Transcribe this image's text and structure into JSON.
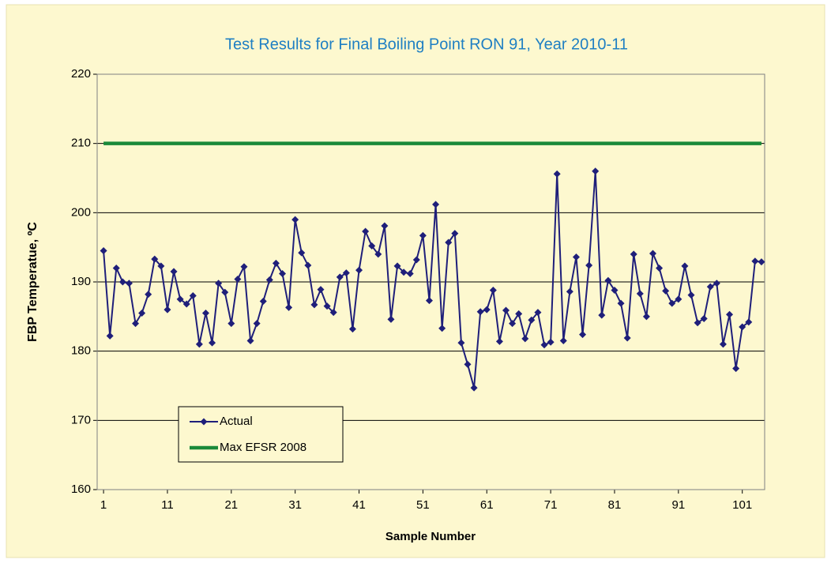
{
  "chart_data": {
    "type": "line",
    "title": "Test Results for Final Boiling Point RON 91, Year 2010-11",
    "x_label": "Sample Number",
    "y_label": "FBP Temperatue, ºC",
    "x": [
      1,
      2,
      3,
      4,
      5,
      6,
      7,
      8,
      9,
      10,
      11,
      12,
      13,
      14,
      15,
      16,
      17,
      18,
      19,
      20,
      21,
      22,
      23,
      24,
      25,
      26,
      27,
      28,
      29,
      30,
      31,
      32,
      33,
      34,
      35,
      36,
      37,
      38,
      39,
      40,
      41,
      42,
      43,
      44,
      45,
      46,
      47,
      48,
      49,
      50,
      51,
      52,
      53,
      54,
      55,
      56,
      57,
      58,
      59,
      60,
      61,
      62,
      63,
      64,
      65,
      66,
      67,
      68,
      69,
      70,
      71,
      72,
      73,
      74,
      75,
      76,
      77,
      78,
      79,
      80,
      81,
      82,
      83,
      84,
      85,
      86,
      87,
      88,
      89,
      90,
      91,
      92,
      93,
      94,
      95,
      96,
      97,
      98,
      99,
      100,
      101,
      102,
      103,
      104
    ],
    "series": [
      {
        "name": "Actual",
        "color": "#1f1f7a",
        "values": [
          194.5,
          182.2,
          192,
          190,
          189.8,
          184,
          185.5,
          188.2,
          193.3,
          192.3,
          186,
          191.5,
          187.5,
          186.8,
          188,
          181,
          185.5,
          181.2,
          189.8,
          188.5,
          184,
          190.4,
          192.2,
          181.5,
          184,
          187.2,
          190.3,
          192.7,
          191.2,
          186.3,
          199,
          194.2,
          192.4,
          186.7,
          188.9,
          186.5,
          185.6,
          190.7,
          191.3,
          183.2,
          191.7,
          197.3,
          195.2,
          194,
          198.1,
          184.6,
          192.3,
          191.4,
          191.2,
          193.2,
          196.7,
          187.3,
          201.2,
          183.3,
          195.7,
          197,
          181.2,
          178.1,
          174.7,
          185.7,
          186,
          188.8,
          181.4,
          185.9,
          184,
          185.4,
          181.8,
          184.5,
          185.6,
          180.9,
          181.3,
          205.6,
          181.5,
          188.6,
          193.6,
          182.4,
          192.4,
          206,
          185.2,
          190.2,
          188.8,
          186.9,
          181.9,
          194,
          188.3,
          185,
          194.1,
          192,
          188.7,
          186.9,
          187.5,
          192.3,
          188.1,
          184.1,
          184.7,
          189.3,
          189.8,
          181,
          185.3,
          177.5,
          183.5,
          184.2,
          193,
          192.9
        ]
      },
      {
        "name": "Max EFSR 2008",
        "color": "#1a8a3a",
        "values": [
          210,
          210,
          210,
          210,
          210,
          210,
          210,
          210,
          210,
          210,
          210,
          210,
          210,
          210,
          210,
          210,
          210,
          210,
          210,
          210,
          210,
          210,
          210,
          210,
          210,
          210,
          210,
          210,
          210,
          210,
          210,
          210,
          210,
          210,
          210,
          210,
          210,
          210,
          210,
          210,
          210,
          210,
          210,
          210,
          210,
          210,
          210,
          210,
          210,
          210,
          210,
          210,
          210,
          210,
          210,
          210,
          210,
          210,
          210,
          210,
          210,
          210,
          210,
          210,
          210,
          210,
          210,
          210,
          210,
          210,
          210,
          210,
          210,
          210,
          210,
          210,
          210,
          210,
          210,
          210,
          210,
          210,
          210,
          210,
          210,
          210,
          210,
          210,
          210,
          210,
          210,
          210,
          210,
          210,
          210,
          210,
          210,
          210,
          210,
          210,
          210,
          210,
          210,
          210
        ]
      }
    ],
    "xlim": [
      0,
      104.5
    ],
    "xticks": [
      1,
      11,
      21,
      31,
      41,
      51,
      61,
      71,
      81,
      91,
      101
    ],
    "ylim": [
      160,
      220
    ],
    "yticks": [
      160,
      170,
      180,
      190,
      200,
      210,
      220
    ],
    "grid": true,
    "legend": "lower left"
  }
}
